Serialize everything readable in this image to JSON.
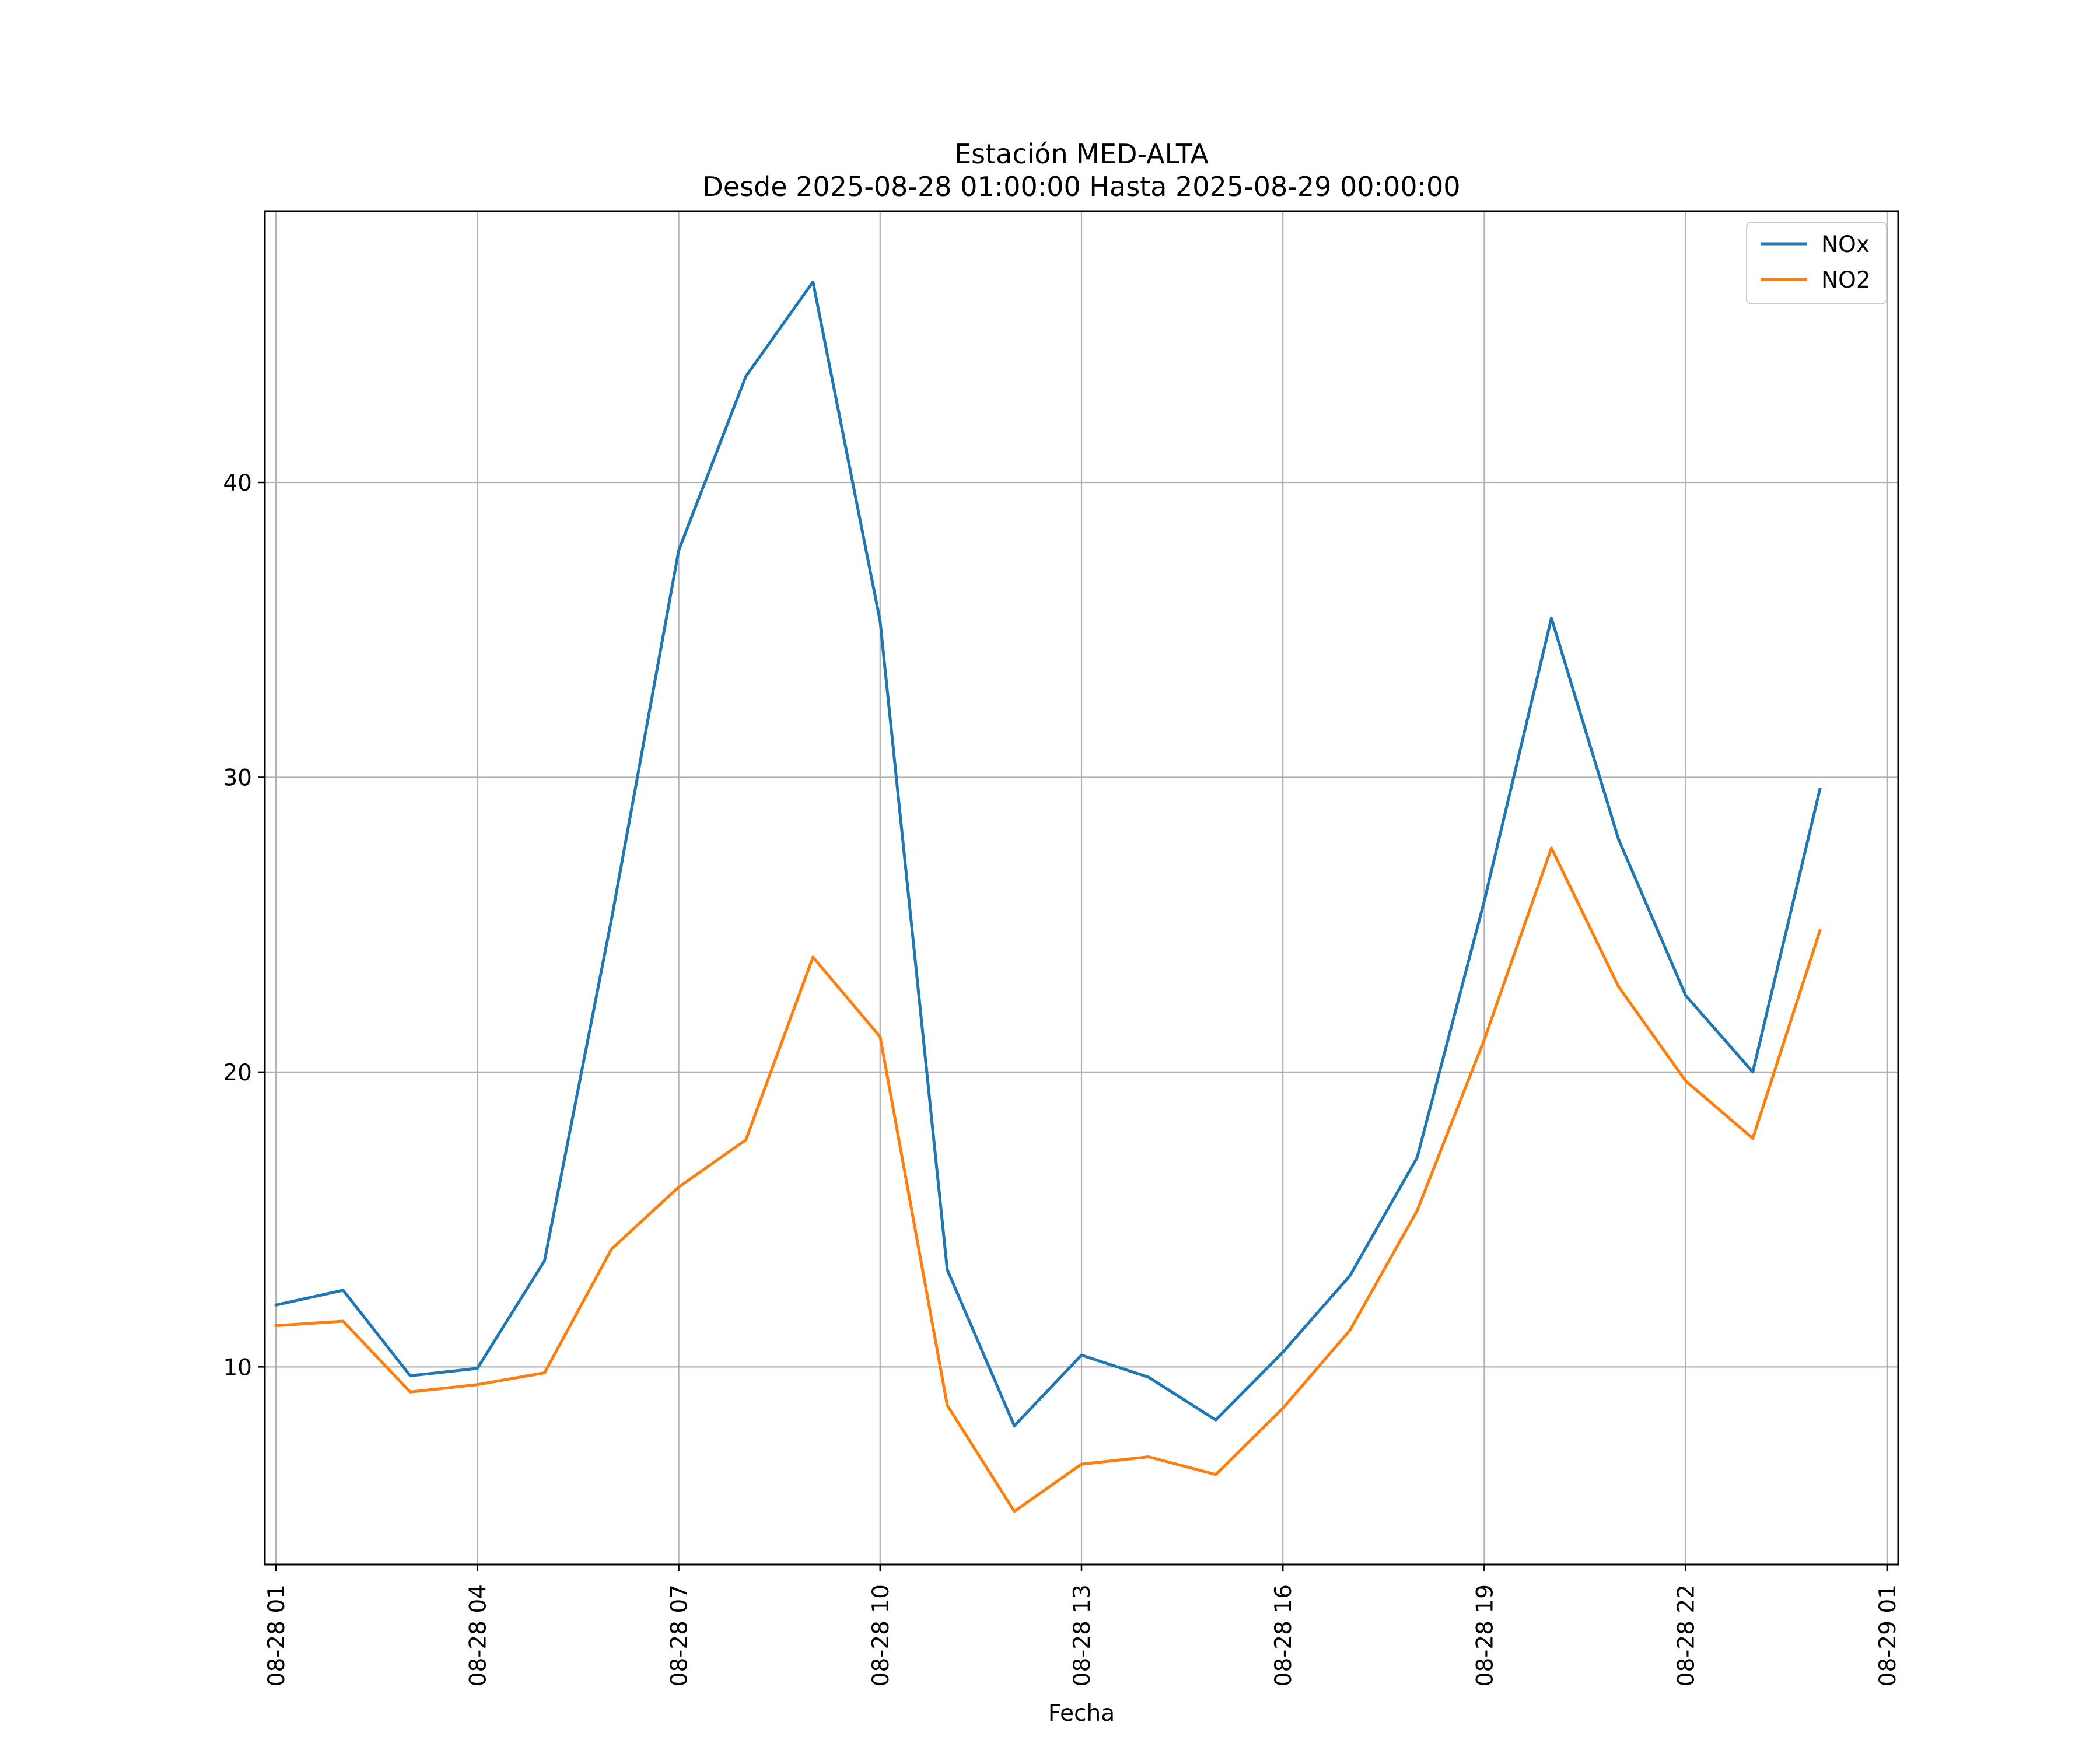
{
  "chart_data": {
    "type": "line",
    "title": "Estación MED-ALTA",
    "subtitle": "Desde 2025-08-28 01:00:00 Hasta 2025-08-29 00:00:00",
    "xlabel": "Fecha",
    "ylabel": "",
    "x": [
      "2025-08-28 01:00",
      "2025-08-28 02:00",
      "2025-08-28 03:00",
      "2025-08-28 04:00",
      "2025-08-28 05:00",
      "2025-08-28 06:00",
      "2025-08-28 07:00",
      "2025-08-28 08:00",
      "2025-08-28 09:00",
      "2025-08-28 10:00",
      "2025-08-28 11:00",
      "2025-08-28 12:00",
      "2025-08-28 13:00",
      "2025-08-28 14:00",
      "2025-08-28 15:00",
      "2025-08-28 16:00",
      "2025-08-28 17:00",
      "2025-08-28 18:00",
      "2025-08-28 19:00",
      "2025-08-28 20:00",
      "2025-08-28 21:00",
      "2025-08-28 22:00",
      "2025-08-28 23:00",
      "2025-08-29 00:00"
    ],
    "xlim": [
      "2025-08-28 00:50",
      "2025-08-29 01:10"
    ],
    "ylim": [
      3.3,
      49.2
    ],
    "xticks": [
      "2025-08-28 01:00",
      "2025-08-28 04:00",
      "2025-08-28 07:00",
      "2025-08-28 10:00",
      "2025-08-28 13:00",
      "2025-08-28 16:00",
      "2025-08-28 19:00",
      "2025-08-28 22:00",
      "2025-08-29 01:00"
    ],
    "xtick_labels": [
      "08-28 01",
      "08-28 04",
      "08-28 07",
      "08-28 10",
      "08-28 13",
      "08-28 16",
      "08-28 19",
      "08-28 22",
      "08-29 01"
    ],
    "yticks": [
      10,
      20,
      30,
      40
    ],
    "ytick_labels": [
      "10",
      "20",
      "30",
      "40"
    ],
    "grid": true,
    "legend_position": "top-right",
    "series": [
      {
        "name": "NOx",
        "color": "#1f77b4",
        "values": [
          12.1,
          12.6,
          9.7,
          9.95,
          13.6,
          25.2,
          37.7,
          43.6,
          46.8,
          35.3,
          13.3,
          8.0,
          10.4,
          9.65,
          8.2,
          10.5,
          13.1,
          17.1,
          25.8,
          35.4,
          27.9,
          22.6,
          20.0,
          29.6
        ]
      },
      {
        "name": "NO2",
        "color": "#ff7f0e",
        "values": [
          11.4,
          11.55,
          9.15,
          9.4,
          9.8,
          14.0,
          16.1,
          17.7,
          23.9,
          21.2,
          8.7,
          5.1,
          6.7,
          6.95,
          6.35,
          8.6,
          11.25,
          15.3,
          21.1,
          27.6,
          22.9,
          19.7,
          17.75,
          24.8
        ]
      }
    ]
  }
}
